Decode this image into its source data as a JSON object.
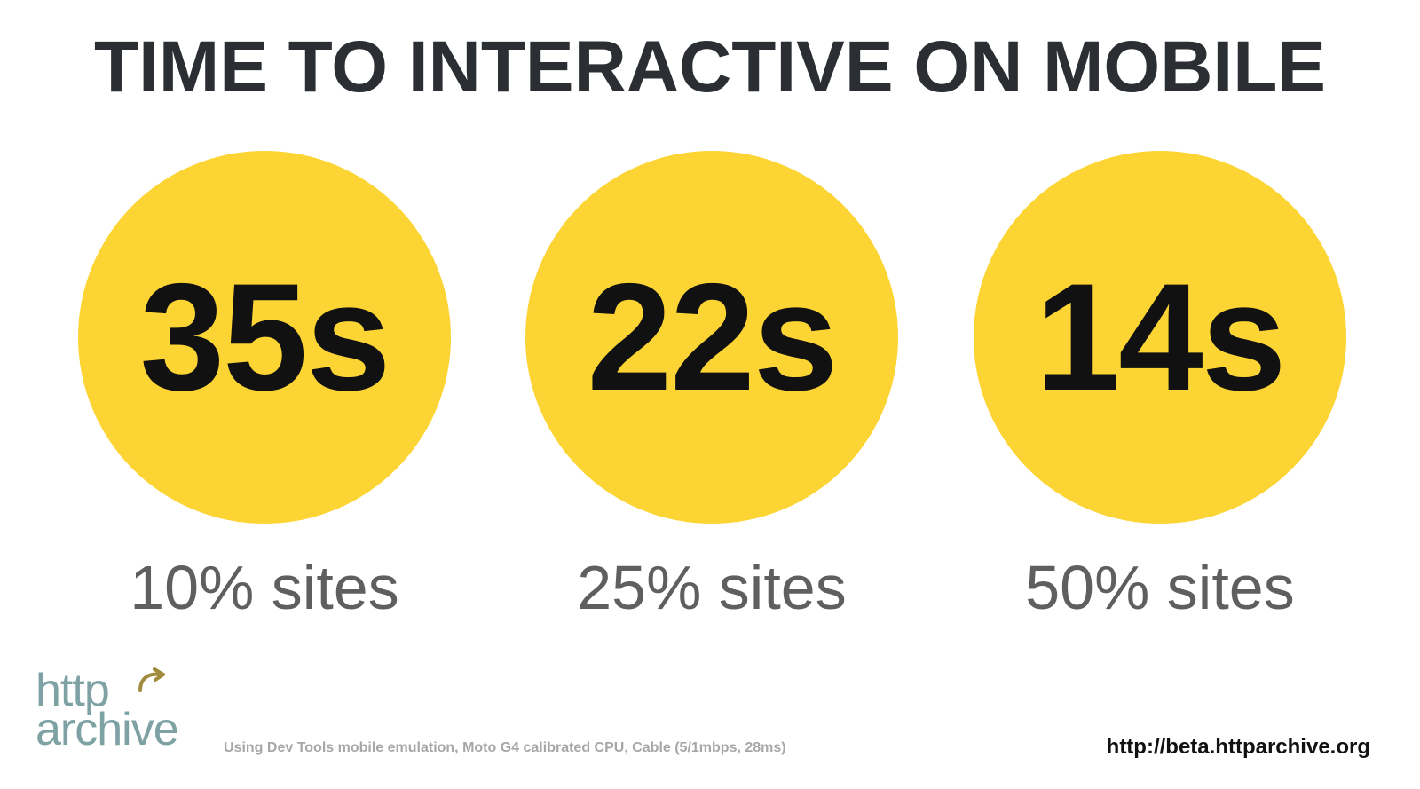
{
  "slide": {
    "title": "TIME TO INTERACTIVE ON MOBILE",
    "stats": [
      {
        "value": "35s",
        "caption": "10% sites"
      },
      {
        "value": "22s",
        "caption": "25% sites"
      },
      {
        "value": "14s",
        "caption": "50% sites"
      }
    ],
    "footnote": "Using Dev Tools mobile emulation, Moto G4 calibrated CPU, Cable (5/1mbps, 28ms)",
    "url": "http://beta.httparchive.org"
  },
  "logo": {
    "line1": "http",
    "line2": "archive",
    "icon": "curved-arrow-icon",
    "color": "#7ea2a4",
    "accent": "#a08a3c"
  },
  "colors": {
    "circle": "#fcd535",
    "title": "#2b2f33",
    "value": "#111111",
    "caption": "#5f5f5f",
    "footnote": "#a7a7a7"
  }
}
